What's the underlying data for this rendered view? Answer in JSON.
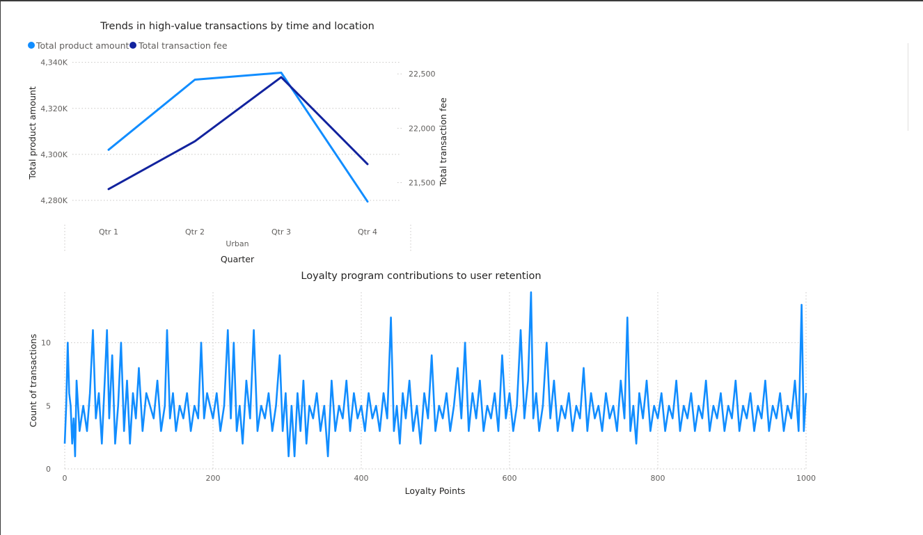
{
  "chart_data": [
    {
      "type": "line",
      "title": "Trends in high-value transactions by time and location",
      "xlabel": "Quarter",
      "x_group_label": "Urban",
      "categories": [
        "Qtr 1",
        "Qtr 2",
        "Qtr 3",
        "Qtr 4"
      ],
      "legend_position": "top-left",
      "grid": true,
      "series": [
        {
          "name": "Total product amount",
          "axis": "left",
          "color": "#118dff",
          "values": [
            4302000,
            4332500,
            4335500,
            4279500
          ]
        },
        {
          "name": "Total transaction fee",
          "axis": "right",
          "color": "#12239e",
          "values": [
            21440,
            21880,
            22470,
            21670
          ]
        }
      ],
      "y_left": {
        "label": "Total product amount",
        "ticks": [
          4280000,
          4300000,
          4320000,
          4340000
        ],
        "tick_labels": [
          "4,280K",
          "4,300K",
          "4,320K",
          "4,340K"
        ],
        "ylim": [
          4279700,
          4340200
        ]
      },
      "y_right": {
        "label": "Total transaction fee",
        "ticks": [
          21500,
          22000,
          22500
        ],
        "tick_labels": [
          "21,500",
          "22,000",
          "22,500"
        ],
        "ylim": [
          21330,
          22610
        ]
      }
    },
    {
      "type": "line",
      "title": "Loyalty program contributions to user retention",
      "xlabel": "Loyalty Points",
      "ylabel": "Count of transactions",
      "xlim": [
        0,
        1000
      ],
      "ylim": [
        0,
        14
      ],
      "x_ticks": [
        0,
        200,
        400,
        600,
        800,
        1000
      ],
      "y_ticks": [
        0,
        5,
        10
      ],
      "grid": true,
      "series": [
        {
          "color": "#118dff",
          "anchors": [
            [
              0,
              2
            ],
            [
              2,
              5
            ],
            [
              4,
              10
            ],
            [
              6,
              6
            ],
            [
              8,
              5
            ],
            [
              10,
              2
            ],
            [
              12,
              4
            ],
            [
              14,
              1
            ],
            [
              16,
              7
            ],
            [
              20,
              3
            ],
            [
              25,
              5
            ],
            [
              30,
              3
            ],
            [
              34,
              6
            ],
            [
              38,
              11
            ],
            [
              42,
              4
            ],
            [
              46,
              6
            ],
            [
              50,
              2
            ],
            [
              54,
              7
            ],
            [
              57,
              11
            ],
            [
              60,
              4
            ],
            [
              64,
              9
            ],
            [
              68,
              2
            ],
            [
              72,
              5
            ],
            [
              76,
              10
            ],
            [
              80,
              3
            ],
            [
              84,
              7
            ],
            [
              88,
              2
            ],
            [
              92,
              6
            ],
            [
              96,
              4
            ],
            [
              100,
              8
            ],
            [
              105,
              3
            ],
            [
              110,
              6
            ],
            [
              115,
              5
            ],
            [
              120,
              4
            ],
            [
              125,
              7
            ],
            [
              130,
              3
            ],
            [
              135,
              5
            ],
            [
              138,
              11
            ],
            [
              142,
              4
            ],
            [
              146,
              6
            ],
            [
              150,
              3
            ],
            [
              155,
              5
            ],
            [
              160,
              4
            ],
            [
              165,
              6
            ],
            [
              170,
              3
            ],
            [
              175,
              5
            ],
            [
              180,
              4
            ],
            [
              184,
              10
            ],
            [
              188,
              4
            ],
            [
              192,
              6
            ],
            [
              196,
              5
            ],
            [
              200,
              4
            ],
            [
              205,
              6
            ],
            [
              210,
              3
            ],
            [
              215,
              5
            ],
            [
              220,
              11
            ],
            [
              224,
              4
            ],
            [
              228,
              10
            ],
            [
              232,
              3
            ],
            [
              236,
              5
            ],
            [
              240,
              2
            ],
            [
              245,
              7
            ],
            [
              250,
              4
            ],
            [
              255,
              11
            ],
            [
              260,
              3
            ],
            [
              265,
              5
            ],
            [
              270,
              4
            ],
            [
              275,
              6
            ],
            [
              280,
              3
            ],
            [
              285,
              5
            ],
            [
              290,
              9
            ],
            [
              294,
              3
            ],
            [
              298,
              6
            ],
            [
              302,
              1
            ],
            [
              306,
              5
            ],
            [
              310,
              1
            ],
            [
              314,
              6
            ],
            [
              318,
              3
            ],
            [
              322,
              7
            ],
            [
              326,
              2
            ],
            [
              330,
              5
            ],
            [
              335,
              4
            ],
            [
              340,
              6
            ],
            [
              345,
              3
            ],
            [
              350,
              5
            ],
            [
              355,
              1
            ],
            [
              360,
              7
            ],
            [
              365,
              3
            ],
            [
              370,
              5
            ],
            [
              375,
              4
            ],
            [
              380,
              7
            ],
            [
              385,
              3
            ],
            [
              390,
              6
            ],
            [
              395,
              4
            ],
            [
              400,
              5
            ],
            [
              405,
              3
            ],
            [
              410,
              6
            ],
            [
              415,
              4
            ],
            [
              420,
              5
            ],
            [
              425,
              3
            ],
            [
              430,
              6
            ],
            [
              435,
              4
            ],
            [
              440,
              12
            ],
            [
              444,
              3
            ],
            [
              448,
              5
            ],
            [
              452,
              2
            ],
            [
              456,
              6
            ],
            [
              460,
              4
            ],
            [
              465,
              7
            ],
            [
              470,
              3
            ],
            [
              475,
              5
            ],
            [
              480,
              2
            ],
            [
              485,
              6
            ],
            [
              490,
              4
            ],
            [
              495,
              9
            ],
            [
              500,
              3
            ],
            [
              505,
              5
            ],
            [
              510,
              4
            ],
            [
              515,
              6
            ],
            [
              520,
              3
            ],
            [
              525,
              5
            ],
            [
              530,
              8
            ],
            [
              535,
              4
            ],
            [
              540,
              10
            ],
            [
              545,
              3
            ],
            [
              550,
              6
            ],
            [
              555,
              4
            ],
            [
              560,
              7
            ],
            [
              565,
              3
            ],
            [
              570,
              5
            ],
            [
              575,
              4
            ],
            [
              580,
              6
            ],
            [
              585,
              3
            ],
            [
              590,
              9
            ],
            [
              595,
              4
            ],
            [
              600,
              6
            ],
            [
              605,
              3
            ],
            [
              610,
              5
            ],
            [
              615,
              11
            ],
            [
              620,
              4
            ],
            [
              625,
              7
            ],
            [
              629,
              14
            ],
            [
              632,
              4
            ],
            [
              636,
              6
            ],
            [
              640,
              3
            ],
            [
              645,
              5
            ],
            [
              650,
              10
            ],
            [
              655,
              4
            ],
            [
              660,
              7
            ],
            [
              665,
              3
            ],
            [
              670,
              5
            ],
            [
              675,
              4
            ],
            [
              680,
              6
            ],
            [
              685,
              3
            ],
            [
              690,
              5
            ],
            [
              695,
              4
            ],
            [
              700,
              8
            ],
            [
              705,
              3
            ],
            [
              710,
              6
            ],
            [
              715,
              4
            ],
            [
              720,
              5
            ],
            [
              725,
              3
            ],
            [
              730,
              6
            ],
            [
              735,
              4
            ],
            [
              740,
              5
            ],
            [
              745,
              3
            ],
            [
              750,
              7
            ],
            [
              755,
              4
            ],
            [
              759,
              12
            ],
            [
              763,
              3
            ],
            [
              767,
              5
            ],
            [
              771,
              2
            ],
            [
              775,
              6
            ],
            [
              780,
              4
            ],
            [
              785,
              7
            ],
            [
              790,
              3
            ],
            [
              795,
              5
            ],
            [
              800,
              4
            ],
            [
              805,
              6
            ],
            [
              810,
              3
            ],
            [
              815,
              5
            ],
            [
              820,
              4
            ],
            [
              825,
              7
            ],
            [
              830,
              3
            ],
            [
              835,
              5
            ],
            [
              840,
              4
            ],
            [
              845,
              6
            ],
            [
              850,
              3
            ],
            [
              855,
              5
            ],
            [
              860,
              4
            ],
            [
              865,
              7
            ],
            [
              870,
              3
            ],
            [
              875,
              5
            ],
            [
              880,
              4
            ],
            [
              885,
              6
            ],
            [
              890,
              3
            ],
            [
              895,
              5
            ],
            [
              900,
              4
            ],
            [
              905,
              7
            ],
            [
              910,
              3
            ],
            [
              915,
              5
            ],
            [
              920,
              4
            ],
            [
              925,
              6
            ],
            [
              930,
              3
            ],
            [
              935,
              5
            ],
            [
              940,
              4
            ],
            [
              945,
              7
            ],
            [
              950,
              3
            ],
            [
              955,
              5
            ],
            [
              960,
              4
            ],
            [
              965,
              6
            ],
            [
              970,
              3
            ],
            [
              975,
              5
            ],
            [
              980,
              4
            ],
            [
              985,
              7
            ],
            [
              990,
              3
            ],
            [
              994,
              13
            ],
            [
              997,
              3
            ],
            [
              1000,
              6
            ]
          ]
        }
      ]
    }
  ]
}
